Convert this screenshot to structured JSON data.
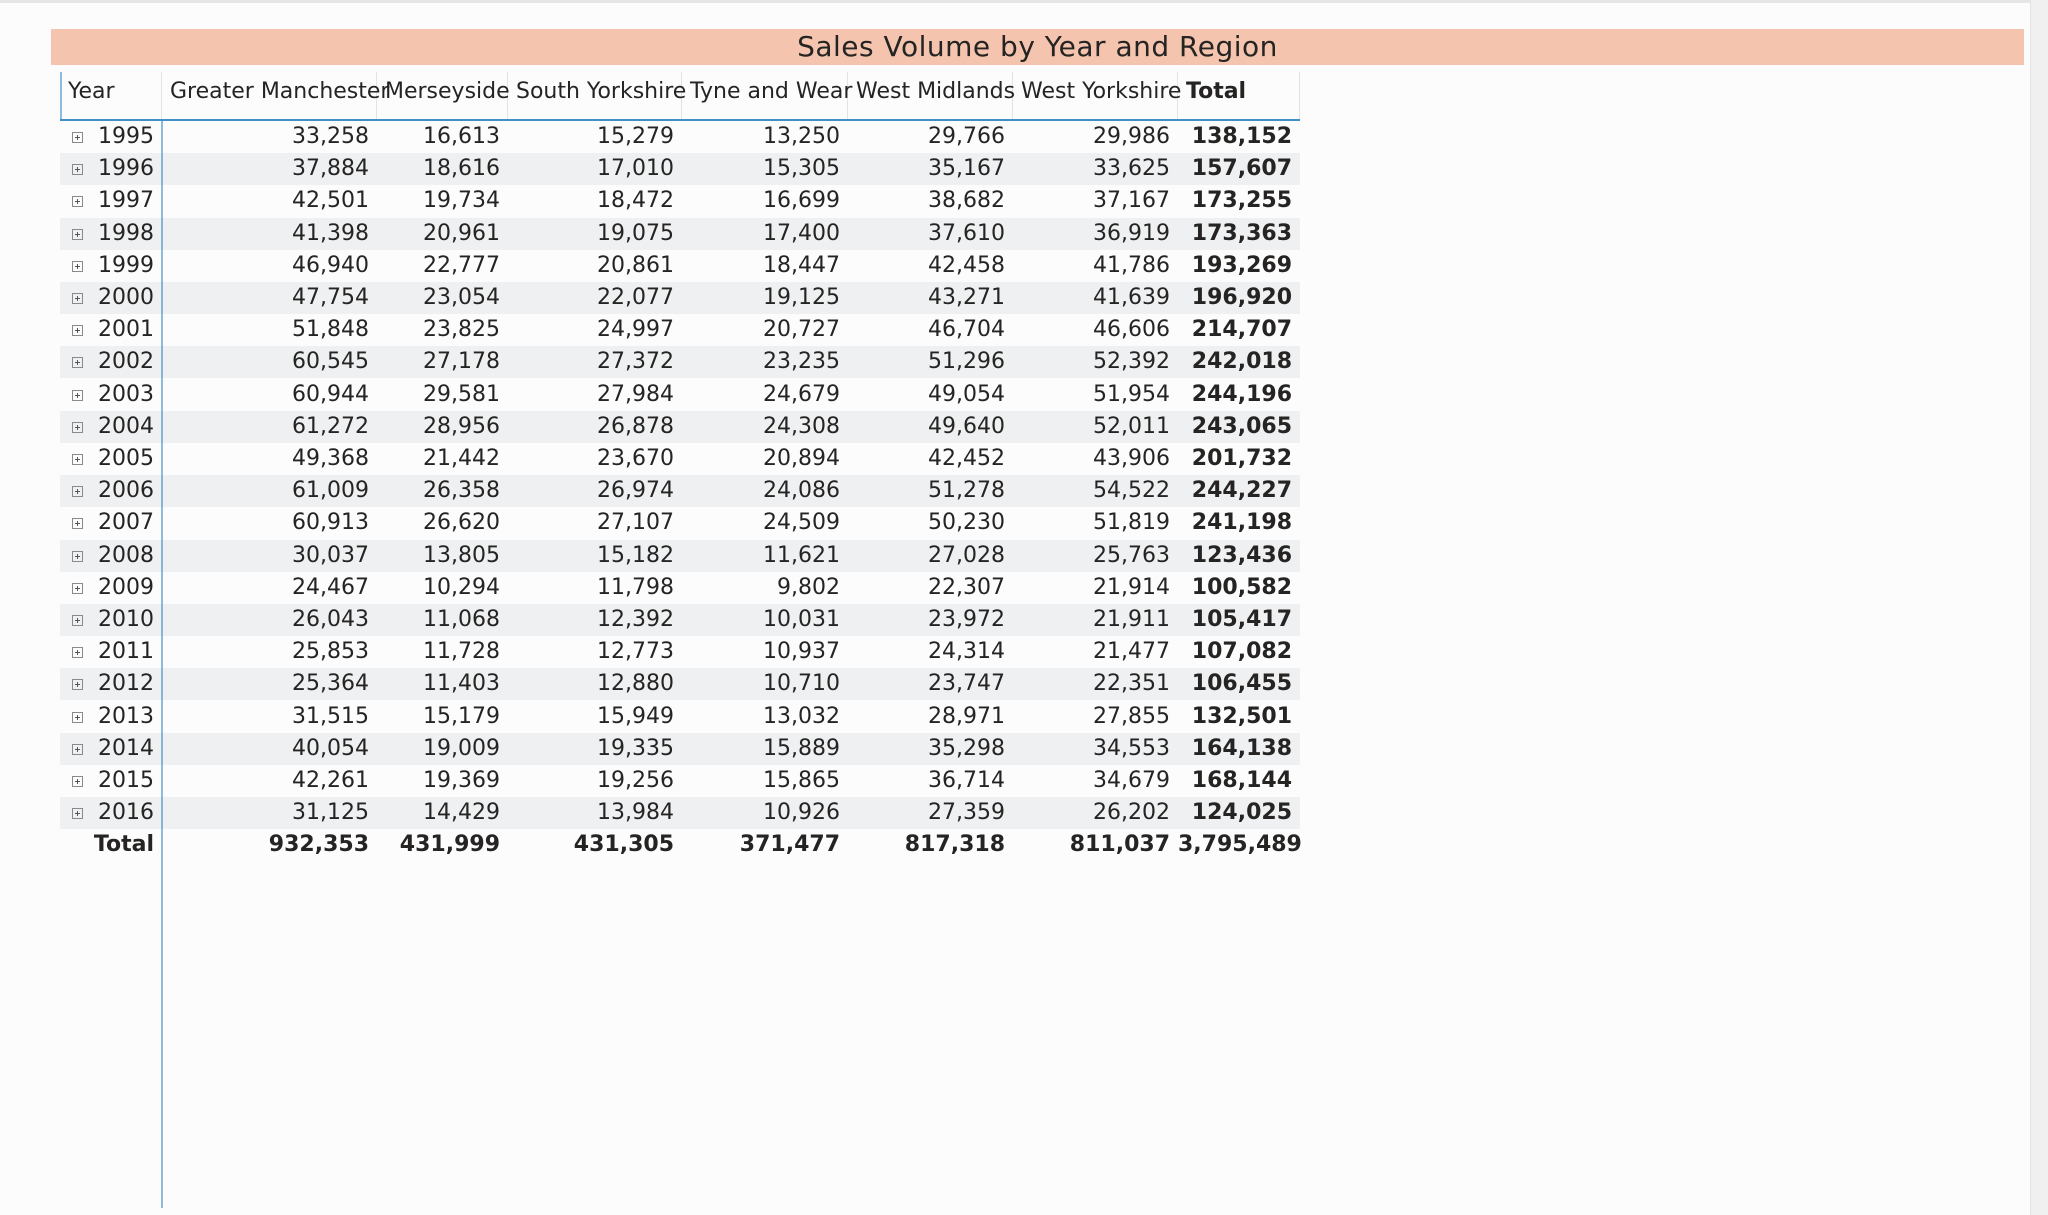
{
  "title": "Sales Volume by Year and Region",
  "table": {
    "columns": [
      "Year",
      "Greater Manchester",
      "Merseyside",
      "South Yorkshire",
      "Tyne and Wear",
      "West Midlands",
      "West Yorkshire",
      "Total"
    ],
    "rows": [
      [
        "1995",
        "33,258",
        "16,613",
        "15,279",
        "13,250",
        "29,766",
        "29,986",
        "138,152"
      ],
      [
        "1996",
        "37,884",
        "18,616",
        "17,010",
        "15,305",
        "35,167",
        "33,625",
        "157,607"
      ],
      [
        "1997",
        "42,501",
        "19,734",
        "18,472",
        "16,699",
        "38,682",
        "37,167",
        "173,255"
      ],
      [
        "1998",
        "41,398",
        "20,961",
        "19,075",
        "17,400",
        "37,610",
        "36,919",
        "173,363"
      ],
      [
        "1999",
        "46,940",
        "22,777",
        "20,861",
        "18,447",
        "42,458",
        "41,786",
        "193,269"
      ],
      [
        "2000",
        "47,754",
        "23,054",
        "22,077",
        "19,125",
        "43,271",
        "41,639",
        "196,920"
      ],
      [
        "2001",
        "51,848",
        "23,825",
        "24,997",
        "20,727",
        "46,704",
        "46,606",
        "214,707"
      ],
      [
        "2002",
        "60,545",
        "27,178",
        "27,372",
        "23,235",
        "51,296",
        "52,392",
        "242,018"
      ],
      [
        "2003",
        "60,944",
        "29,581",
        "27,984",
        "24,679",
        "49,054",
        "51,954",
        "244,196"
      ],
      [
        "2004",
        "61,272",
        "28,956",
        "26,878",
        "24,308",
        "49,640",
        "52,011",
        "243,065"
      ],
      [
        "2005",
        "49,368",
        "21,442",
        "23,670",
        "20,894",
        "42,452",
        "43,906",
        "201,732"
      ],
      [
        "2006",
        "61,009",
        "26,358",
        "26,974",
        "24,086",
        "51,278",
        "54,522",
        "244,227"
      ],
      [
        "2007",
        "60,913",
        "26,620",
        "27,107",
        "24,509",
        "50,230",
        "51,819",
        "241,198"
      ],
      [
        "2008",
        "30,037",
        "13,805",
        "15,182",
        "11,621",
        "27,028",
        "25,763",
        "123,436"
      ],
      [
        "2009",
        "24,467",
        "10,294",
        "11,798",
        "9,802",
        "22,307",
        "21,914",
        "100,582"
      ],
      [
        "2010",
        "26,043",
        "11,068",
        "12,392",
        "10,031",
        "23,972",
        "21,911",
        "105,417"
      ],
      [
        "2011",
        "25,853",
        "11,728",
        "12,773",
        "10,937",
        "24,314",
        "21,477",
        "107,082"
      ],
      [
        "2012",
        "25,364",
        "11,403",
        "12,880",
        "10,710",
        "23,747",
        "22,351",
        "106,455"
      ],
      [
        "2013",
        "31,515",
        "15,179",
        "15,949",
        "13,032",
        "28,971",
        "27,855",
        "132,501"
      ],
      [
        "2014",
        "40,054",
        "19,009",
        "19,335",
        "15,889",
        "35,298",
        "34,553",
        "164,138"
      ],
      [
        "2015",
        "42,261",
        "19,369",
        "19,256",
        "15,865",
        "36,714",
        "34,679",
        "168,144"
      ],
      [
        "2016",
        "31,125",
        "14,429",
        "13,984",
        "10,926",
        "27,359",
        "26,202",
        "124,025"
      ]
    ],
    "total_row": [
      "Total",
      "932,353",
      "431,999",
      "431,305",
      "371,477",
      "817,318",
      "811,037",
      "3,795,489"
    ]
  }
}
